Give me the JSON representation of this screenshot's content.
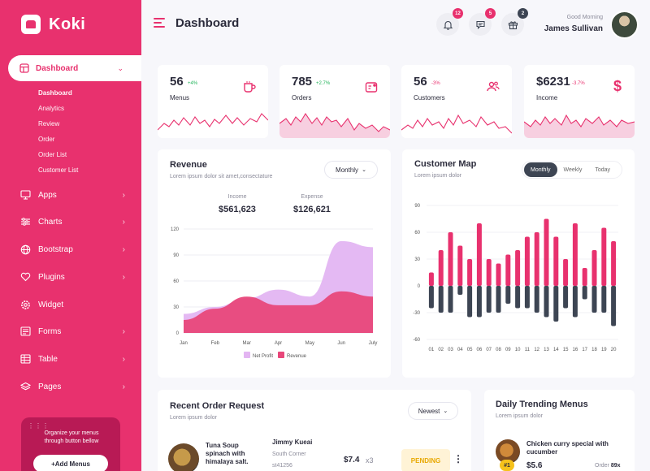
{
  "app": {
    "name": "Koki"
  },
  "sidebar": {
    "active": {
      "label": "Dashboard"
    },
    "subitems": [
      "Dashboard",
      "Analytics",
      "Review",
      "Order",
      "Order List",
      "Customer List"
    ],
    "items": [
      {
        "label": "Apps",
        "icon": "monitor-icon"
      },
      {
        "label": "Charts",
        "icon": "sliders-icon"
      },
      {
        "label": "Bootstrap",
        "icon": "globe-icon"
      },
      {
        "label": "Plugins",
        "icon": "heart-icon"
      },
      {
        "label": "Widget",
        "icon": "settings-icon"
      },
      {
        "label": "Forms",
        "icon": "form-icon"
      },
      {
        "label": "Table",
        "icon": "table-icon"
      },
      {
        "label": "Pages",
        "icon": "layers-icon"
      }
    ],
    "promo": {
      "text": "Organize your menus through button bellow",
      "button": "+Add Menus"
    }
  },
  "header": {
    "title": "Dashboard",
    "notifications": [
      {
        "icon": "bell-icon",
        "count": "12",
        "color": "#e8316e"
      },
      {
        "icon": "chat-icon",
        "count": "5",
        "color": "#e8316e"
      },
      {
        "icon": "gift-icon",
        "count": "2",
        "color": "#3d4553"
      }
    ],
    "greeting": "Good Morning",
    "user_name": "James Sullivan"
  },
  "stats": [
    {
      "value": "56",
      "change": "+4%",
      "change_color": "#22b45a",
      "label": "Menus",
      "icon": "cup-icon"
    },
    {
      "value": "785",
      "change": "+2.7%",
      "change_color": "#22b45a",
      "label": "Orders",
      "icon": "order-icon"
    },
    {
      "value": "56",
      "change": "-3%",
      "change_color": "#e8316e",
      "label": "Customers",
      "icon": "customers-icon"
    },
    {
      "value": "$6231",
      "change": "-3.7%",
      "change_color": "#e8316e",
      "label": "Income",
      "icon": "dollar-icon"
    }
  ],
  "revenue": {
    "title": "Revenue",
    "subtitle": "Lorem ipsum dolor sit amet,consectature",
    "period": "Monthly",
    "income_label": "Income",
    "income_value": "$561,623",
    "expense_label": "Expense",
    "expense_value": "$126,621"
  },
  "customer_map": {
    "title": "Customer Map",
    "subtitle": "Lorem ipsum dolor",
    "tabs": [
      "Monthly",
      "Weekly",
      "Today"
    ],
    "active_tab": "Monthly"
  },
  "recent_orders": {
    "title": "Recent Order Request",
    "subtitle": "Lorem ipsum dolor",
    "sort": "Newest",
    "row": {
      "item": "Tuna Soup spinach with himalaya salt.",
      "customer": "Jimmy Kueai",
      "address": "South Corner",
      "code": "st41256",
      "price": "$7.4",
      "qty": "x3",
      "status": "PENDING"
    }
  },
  "trending": {
    "title": "Daily Trending Menus",
    "subtitle": "Lorem ipsum dolor",
    "item": {
      "name": "Chicken curry special with cucumber",
      "price": "$5.6",
      "order_label": "Order",
      "order_count": "89x",
      "rank": "#1"
    }
  },
  "colors": {
    "accent": "#e8316e",
    "dark": "#3d4553",
    "light_pink": "#f7cfe0",
    "lavender": "#e3b5f2"
  },
  "chart_data": [
    {
      "type": "area",
      "title": "Revenue",
      "categories": [
        "Jan",
        "Feb",
        "Mar",
        "Apr",
        "May",
        "Jun",
        "July"
      ],
      "ylim": [
        0,
        120
      ],
      "yticks": [
        0,
        30,
        60,
        90,
        120
      ],
      "legend": "bottom",
      "series": [
        {
          "name": "Net Profit",
          "color": "#e3b5f2",
          "values": [
            22,
            30,
            40,
            50,
            42,
            106,
            99
          ]
        },
        {
          "name": "Revenue",
          "color": "#e8477a",
          "values": [
            15,
            28,
            42,
            32,
            32,
            48,
            42
          ]
        }
      ]
    },
    {
      "type": "bar",
      "title": "Customer Map",
      "categories": [
        "01",
        "02",
        "03",
        "04",
        "05",
        "06",
        "07",
        "08",
        "09",
        "10",
        "11",
        "12",
        "13",
        "14",
        "15",
        "16",
        "17",
        "18",
        "19",
        "20"
      ],
      "ylim": [
        -60,
        90
      ],
      "yticks": [
        -60,
        -30,
        0,
        30,
        60,
        90
      ],
      "series": [
        {
          "name": "",
          "color": "#e8316e",
          "values": [
            15,
            40,
            60,
            45,
            30,
            70,
            30,
            25,
            35,
            40,
            55,
            60,
            75,
            55,
            30,
            70,
            20,
            40,
            65,
            50
          ]
        },
        {
          "name": "",
          "color": "#3d4553",
          "values": [
            -25,
            -30,
            -30,
            -10,
            -35,
            -35,
            -30,
            -30,
            -20,
            -25,
            -25,
            -30,
            -35,
            -40,
            -25,
            -35,
            -15,
            -30,
            -30,
            -45
          ]
        }
      ]
    }
  ]
}
